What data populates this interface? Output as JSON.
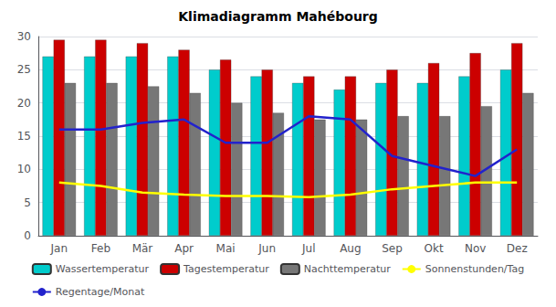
{
  "chart_data": {
    "type": "bar",
    "title": "Klimadiagramm Mahébourg",
    "categories": [
      "Jan",
      "Feb",
      "Mär",
      "Apr",
      "Mai",
      "Jun",
      "Jul",
      "Aug",
      "Sep",
      "Okt",
      "Nov",
      "Dez"
    ],
    "series": [
      {
        "name": "Wassertemperatur",
        "type": "bar",
        "color": "#00CCCC",
        "values": [
          27,
          27,
          27,
          27,
          25,
          24,
          23,
          22,
          23,
          23,
          24,
          25
        ]
      },
      {
        "name": "Tagestemperatur",
        "type": "bar",
        "color": "#CC0000",
        "values": [
          29.5,
          29.5,
          29,
          28,
          26.5,
          25,
          24,
          24,
          25,
          26,
          27.5,
          29
        ]
      },
      {
        "name": "Nachttemperatur",
        "type": "bar",
        "color": "#777777",
        "values": [
          23,
          23,
          22.5,
          21.5,
          20,
          18.5,
          17.5,
          17.5,
          18,
          18,
          19.5,
          21.5
        ]
      },
      {
        "name": "Sonnenstunden/Tag",
        "type": "line",
        "color": "#FFFF00",
        "values": [
          8,
          7.5,
          6.5,
          6.2,
          6,
          6,
          5.8,
          6.2,
          7,
          7.5,
          8,
          8
        ]
      },
      {
        "name": "Regentage/Monat",
        "type": "line",
        "color": "#2222CC",
        "values": [
          16,
          16,
          17,
          17.5,
          14,
          14,
          18,
          17.5,
          12,
          10.5,
          9,
          13
        ]
      }
    ],
    "ylim": [
      0,
      30
    ],
    "yticks": [
      0,
      5,
      10,
      15,
      20,
      25,
      30
    ],
    "grid": true,
    "legend": "bottom"
  }
}
